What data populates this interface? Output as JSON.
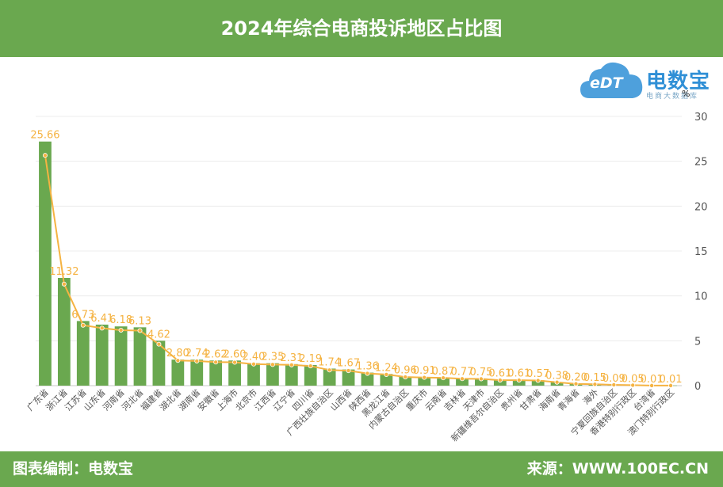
{
  "header": {
    "title": "2024年综合电商投诉地区占比图"
  },
  "logo": {
    "name": "电数宝",
    "sub": "电商大数据库",
    "cloud_text": "eDT",
    "unit": "%"
  },
  "footer": {
    "left": "图表编制：电数宝",
    "right": "来源：WWW.100EC.CN"
  },
  "colors": {
    "bar": "#6aa84f",
    "line": "#f5b342",
    "header": "#6aa84f"
  },
  "chart_data": {
    "type": "bar",
    "categories": [
      "广东省",
      "浙江省",
      "江苏省",
      "山东省",
      "河南省",
      "河北省",
      "福建省",
      "湖北省",
      "湖南省",
      "安徽省",
      "上海市",
      "北京市",
      "江西省",
      "辽宁省",
      "四川省",
      "广西壮族自治区",
      "山西省",
      "陕西省",
      "黑龙江省",
      "内蒙古自治区",
      "重庆市",
      "云南省",
      "吉林省",
      "天津市",
      "新疆维吾尔自治区",
      "贵州省",
      "甘肃省",
      "海南省",
      "青海省",
      "海外",
      "宁夏回族自治区",
      "香港特别行政区",
      "台湾省",
      "澳门特别行政区"
    ],
    "series": [
      {
        "type": "bar",
        "values": [
          27.2,
          12.0,
          7.2,
          6.8,
          6.6,
          6.5,
          5.0,
          2.9,
          2.9,
          2.8,
          2.8,
          2.5,
          2.5,
          2.4,
          2.3,
          1.9,
          1.8,
          1.45,
          1.3,
          1.0,
          0.95,
          0.9,
          0.82,
          0.8,
          0.65,
          0.65,
          0.6,
          0.4,
          0.22,
          0.16,
          0.1,
          0.06,
          0.02,
          0.02
        ]
      },
      {
        "type": "line",
        "values": [
          25.66,
          11.32,
          6.73,
          6.41,
          6.18,
          6.13,
          4.62,
          2.8,
          2.74,
          2.62,
          2.6,
          2.4,
          2.35,
          2.31,
          2.19,
          1.74,
          1.67,
          1.36,
          1.24,
          0.96,
          0.91,
          0.87,
          0.77,
          0.75,
          0.61,
          0.61,
          0.57,
          0.38,
          0.2,
          0.15,
          0.09,
          0.05,
          0.01,
          0.01
        ]
      }
    ],
    "data_labels": [
      "25.66",
      "11.32",
      "6.73",
      "6.41",
      "6.18",
      "6.13",
      "4.62",
      "2.80",
      "2.74",
      "2.62",
      "2.60",
      "2.40",
      "2.35",
      "2.31",
      "2.19",
      "1.74",
      "1.67",
      "1.36",
      "1.24",
      "0.96",
      "0.91",
      "0.87",
      "0.77",
      "0.75",
      "0.61",
      "0.61",
      "0.57",
      "0.38",
      "0.20",
      "0.15",
      "0.09",
      "0.05",
      "0.01",
      "0.01"
    ],
    "yaxis": {
      "position": "right",
      "ylim": [
        0,
        30
      ],
      "ticks": [
        "0",
        "5",
        "10",
        "15",
        "20",
        "25",
        "30"
      ]
    },
    "grid": true
  }
}
